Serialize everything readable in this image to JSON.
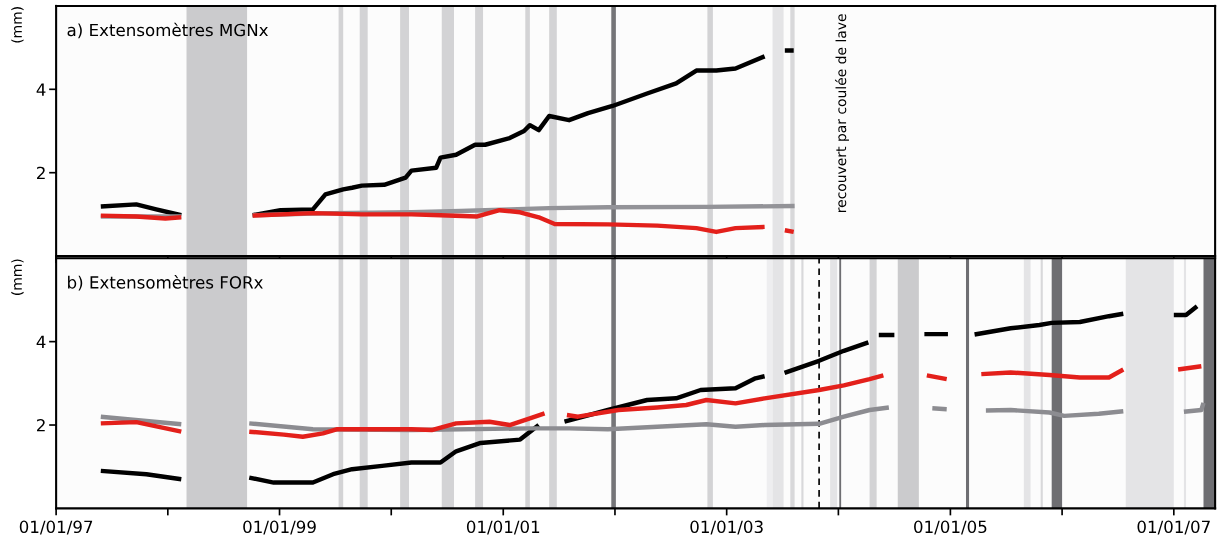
{
  "chart_data": [
    {
      "type": "line",
      "title": "a) Extensomètres MGNx",
      "ylabel": "(mm)",
      "xlim": [
        "1997-01-01",
        "2007-05-16"
      ],
      "ylim": [
        0,
        6
      ],
      "tick_labels": "y",
      "grid": false,
      "line_style": "solid",
      "marker": "none",
      "xticks": [
        "1997-01-01",
        "1998-01-01",
        "1999-01-01",
        "2000-01-01",
        "2001-01-01",
        "2002-01-01",
        "2003-01-01",
        "2004-01-01",
        "2005-01-01",
        "2006-01-01",
        "2007-01-01"
      ],
      "yticks": [
        2,
        4
      ],
      "annotations": [
        "recouvert par coulée de lave"
      ],
      "bands": [
        {
          "axis": "x",
          "from": "1998-03-03",
          "to": "1998-09-17",
          "color": "#cbcbcd"
        },
        {
          "axis": "x",
          "from": "1999-07-13",
          "to": "1999-07-28",
          "color": "#d3d3d5"
        },
        {
          "axis": "x",
          "from": "1999-09-20",
          "to": "1999-10-16",
          "color": "#d3d3d5"
        },
        {
          "axis": "x",
          "from": "2000-01-30",
          "to": "2000-02-28",
          "color": "#d3d3d5"
        },
        {
          "axis": "x",
          "from": "2000-06-14",
          "to": "2000-07-24",
          "color": "#d3d3d5"
        },
        {
          "axis": "x",
          "from": "2000-10-01",
          "to": "2000-10-27",
          "color": "#d3d3d5"
        },
        {
          "axis": "x",
          "from": "2001-03-14",
          "to": "2001-03-29",
          "color": "#d3d3d5"
        },
        {
          "axis": "x",
          "from": "2001-05-31",
          "to": "2001-06-25",
          "color": "#d3d3d5"
        },
        {
          "axis": "x",
          "from": "2001-12-20",
          "to": "2002-01-04",
          "color": "#757578"
        },
        {
          "axis": "x",
          "from": "2002-10-30",
          "to": "2002-11-17",
          "color": "#d3d3d5"
        },
        {
          "axis": "x",
          "from": "2003-05-31",
          "to": "2003-07-06",
          "color": "#e4e4e6"
        },
        {
          "axis": "x",
          "from": "2003-07-28",
          "to": "2003-08-11",
          "color": "#d8d8da"
        }
      ],
      "series": [
        {
          "color": "#000000",
          "x": [
            "1997-05-27",
            "1997-09-20",
            "1997-11-24",
            "1998-02-14",
            "1998-05-27",
            "1998-10-05",
            "1999-01-04",
            "1999-04-20",
            "1999-05-31",
            "1999-07-28",
            "1999-08-26",
            "1999-09-27",
            "1999-12-09",
            "2000-02-17",
            "2000-03-07",
            "2000-05-27",
            "2000-06-10",
            "2000-07-31",
            "2000-10-01",
            "2000-11-03",
            "2001-01-22",
            "2001-03-10",
            "2001-03-29",
            "2001-04-27",
            "2001-05-31",
            "2001-08-04",
            "2001-10-05",
            "2001-12-24",
            "2002-04-16",
            "2002-07-20",
            "2002-09-24",
            "2002-11-28",
            "2003-01-30",
            "2003-05-05",
            "2003-06-14",
            "2003-07-10",
            "2003-08-08"
          ],
          "values": [
            1.19,
            1.24,
            1.12,
            0.98,
            null,
            0.98,
            1.1,
            1.12,
            1.48,
            1.6,
            1.64,
            1.69,
            1.71,
            1.88,
            2.05,
            2.12,
            2.36,
            2.43,
            2.67,
            2.67,
            2.83,
            3.0,
            3.14,
            3.02,
            3.36,
            3.26,
            3.43,
            3.6,
            3.9,
            4.14,
            4.45,
            4.45,
            4.5,
            4.79,
            null,
            4.93,
            4.93
          ]
        },
        {
          "color": "#939398",
          "x": [
            "1997-05-27",
            "1997-09-20",
            "1998-02-14",
            "1998-05-27",
            "1998-10-05",
            "1999-04-20",
            "2000-03-07",
            "2000-08-15",
            "2001-01-22",
            "2001-05-31",
            "2001-12-09",
            "2002-10-27",
            "2003-08-11"
          ],
          "values": [
            0.95,
            0.95,
            0.95,
            null,
            0.98,
            1.02,
            1.05,
            1.08,
            1.12,
            1.15,
            1.17,
            1.18,
            1.2
          ]
        },
        {
          "color": "#e3201b",
          "x": [
            "1997-05-27",
            "1997-09-20",
            "1997-12-24",
            "1998-02-14",
            "1998-05-27",
            "1998-10-05",
            "1999-04-20",
            "1999-09-27",
            "2000-03-07",
            "2000-06-10",
            "2000-10-08",
            "2000-12-20",
            "2001-02-25",
            "2001-04-27",
            "2001-06-18",
            "2001-12-09",
            "2002-05-19",
            "2002-09-24",
            "2002-11-28",
            "2003-01-30",
            "2003-05-05",
            "2003-06-14",
            "2003-07-10",
            "2003-08-08"
          ],
          "values": [
            0.97,
            0.95,
            0.9,
            0.93,
            null,
            0.97,
            1.03,
            1.0,
            1.0,
            0.98,
            0.95,
            1.1,
            1.05,
            0.93,
            0.77,
            0.76,
            0.73,
            0.67,
            0.58,
            0.67,
            0.7,
            null,
            0.62,
            0.58
          ]
        }
      ]
    },
    {
      "type": "line",
      "title": "b) Extensomètres FORx",
      "ylabel": "(mm)",
      "xlim": [
        "1997-01-01",
        "2007-05-16"
      ],
      "ylim": [
        0,
        6
      ],
      "grid": false,
      "line_style": "solid",
      "marker": "none",
      "xticks": [
        {
          "value": "1997-01-01",
          "label": "01/01/97"
        },
        {
          "value": "1998-01-01",
          "label": null
        },
        {
          "value": "1999-01-01",
          "label": "01/01/99"
        },
        {
          "value": "2000-01-01",
          "label": null
        },
        {
          "value": "2001-01-01",
          "label": "01/01/01"
        },
        {
          "value": "2002-01-01",
          "label": null
        },
        {
          "value": "2003-01-01",
          "label": "01/01/03"
        },
        {
          "value": "2004-01-01",
          "label": null
        },
        {
          "value": "2005-01-01",
          "label": "01/01/05"
        },
        {
          "value": "2006-01-01",
          "label": null
        },
        {
          "value": "2007-01-01",
          "label": "01/01/07"
        }
      ],
      "yticks": [
        2,
        4
      ],
      "ref_lines": [
        {
          "axis": "x",
          "value": "2003-10-30",
          "color": "#000000",
          "line_style": "dashed"
        }
      ],
      "bands": [
        {
          "axis": "x",
          "from": "1998-03-03",
          "to": "1998-09-17",
          "color": "#cbcbcd"
        },
        {
          "axis": "x",
          "from": "1999-07-13",
          "to": "1999-07-28",
          "color": "#d3d3d5"
        },
        {
          "axis": "x",
          "from": "1999-09-20",
          "to": "1999-10-16",
          "color": "#d3d3d5"
        },
        {
          "axis": "x",
          "from": "2000-01-30",
          "to": "2000-02-28",
          "color": "#d3d3d5"
        },
        {
          "axis": "x",
          "from": "2000-06-14",
          "to": "2000-07-24",
          "color": "#d3d3d5"
        },
        {
          "axis": "x",
          "from": "2000-10-01",
          "to": "2000-10-27",
          "color": "#d3d3d5"
        },
        {
          "axis": "x",
          "from": "2001-03-14",
          "to": "2001-03-29",
          "color": "#d3d3d5"
        },
        {
          "axis": "x",
          "from": "2001-05-31",
          "to": "2001-06-25",
          "color": "#d3d3d5"
        },
        {
          "axis": "x",
          "from": "2001-12-20",
          "to": "2002-01-04",
          "color": "#757578"
        },
        {
          "axis": "x",
          "from": "2002-10-30",
          "to": "2002-11-17",
          "color": "#d3d3d5"
        },
        {
          "axis": "x",
          "from": "2003-05-12",
          "to": "2003-05-31",
          "color": "#eeeef0"
        },
        {
          "axis": "x",
          "from": "2003-05-31",
          "to": "2003-07-06",
          "color": "#e4e4e6"
        },
        {
          "axis": "x",
          "from": "2003-07-28",
          "to": "2003-08-11",
          "color": "#d8d8da"
        },
        {
          "axis": "x",
          "from": "2003-09-02",
          "to": "2003-09-09",
          "color": "#d8d8da"
        },
        {
          "axis": "x",
          "from": "2003-12-05",
          "to": "2003-12-28",
          "color": "#e4e4e6"
        },
        {
          "axis": "x",
          "from": "2004-01-04",
          "to": "2004-01-10",
          "color": "#6e6e72"
        },
        {
          "axis": "x",
          "from": "2004-04-12",
          "to": "2004-05-05",
          "color": "#d3d3d5"
        },
        {
          "axis": "x",
          "from": "2004-07-13",
          "to": "2004-09-20",
          "color": "#cbcbcd"
        },
        {
          "axis": "x",
          "from": "2005-02-21",
          "to": "2005-03-03",
          "color": "#6e6e72"
        },
        {
          "axis": "x",
          "from": "2005-08-29",
          "to": "2005-09-20",
          "color": "#e4e4e6"
        },
        {
          "axis": "x",
          "from": "2005-10-23",
          "to": "2005-10-30",
          "color": "#d8d8da"
        },
        {
          "axis": "x",
          "from": "2005-11-28",
          "to": "2006-01-01",
          "color": "#6e6e72"
        },
        {
          "axis": "x",
          "from": "2006-07-28",
          "to": "2007-01-01",
          "color": "#e4e4e6"
        },
        {
          "axis": "x",
          "from": "2007-02-03",
          "to": "2007-02-10",
          "color": "#e4e4e6"
        },
        {
          "axis": "x",
          "from": "2007-04-08",
          "to": "2007-05-16",
          "color": "#6e6e72"
        }
      ],
      "series": [
        {
          "color": "#000000",
          "x": [
            "1997-05-27",
            "1997-10-23",
            "1998-02-14",
            "1998-05-27",
            "1998-09-24",
            "1998-12-13",
            "1999-04-20",
            "1999-06-25",
            "1999-08-26",
            "1999-12-02",
            "2000-03-07",
            "2000-06-10",
            "2000-07-31",
            "2000-10-19",
            "2001-02-25",
            "2001-04-27",
            "2001-06-14",
            "2001-07-20",
            "2001-12-09",
            "2002-04-16",
            "2002-07-20",
            "2002-10-08",
            "2003-01-30",
            "2003-04-05",
            "2003-05-05",
            "2003-06-07",
            "2003-07-09",
            "2003-10-30",
            "2004-01-19",
            "2004-04-08",
            "2004-04-23",
            "2004-05-12",
            "2004-07-02",
            "2004-08-19",
            "2004-10-08",
            "2004-12-24",
            "2005-02-06",
            "2005-03-21",
            "2005-07-17",
            "2005-10-19",
            "2005-11-28",
            "2006-02-28",
            "2006-06-03",
            "2006-07-20",
            "2006-10-19",
            "2007-01-01",
            "2007-02-10",
            "2007-03-18"
          ],
          "values": [
            0.9,
            0.82,
            0.7,
            null,
            0.74,
            0.62,
            0.62,
            0.82,
            0.94,
            1.02,
            1.1,
            1.1,
            1.37,
            1.57,
            1.65,
            2.0,
            null,
            2.08,
            2.36,
            2.6,
            2.64,
            2.84,
            2.88,
            3.12,
            3.17,
            null,
            3.25,
            3.54,
            3.78,
            3.98,
            null,
            4.16,
            4.16,
            null,
            4.18,
            4.18,
            null,
            4.17,
            4.32,
            4.4,
            4.45,
            4.47,
            4.61,
            4.67,
            null,
            4.64,
            4.64,
            4.85
          ]
        },
        {
          "color": "#8c8c91",
          "x": [
            "1997-05-27",
            "1998-02-14",
            "1998-05-27",
            "1998-09-24",
            "1999-04-20",
            "2000-03-07",
            "2001-03-29",
            "2001-08-04",
            "2001-12-09",
            "2002-10-27",
            "2003-01-30",
            "2003-05-05",
            "2003-10-30",
            "2004-01-19",
            "2004-04-12",
            "2004-06-14",
            "2004-08-08",
            "2004-11-03",
            "2004-12-20",
            "2005-02-06",
            "2005-04-27",
            "2005-07-17",
            "2005-11-21",
            "2006-01-08",
            "2006-05-01",
            "2006-07-20",
            "2006-10-19",
            "2007-02-03",
            "2007-04-01",
            "2007-04-08"
          ],
          "values": [
            2.2,
            2.02,
            null,
            2.04,
            1.9,
            1.88,
            1.92,
            1.92,
            1.9,
            2.02,
            1.96,
            2.0,
            2.03,
            2.2,
            2.36,
            2.42,
            null,
            2.4,
            2.38,
            null,
            2.35,
            2.36,
            2.3,
            2.22,
            2.27,
            2.33,
            null,
            2.32,
            2.36,
            2.53
          ]
        },
        {
          "color": "#e3201b",
          "x": [
            "1997-05-27",
            "1997-09-20",
            "1998-02-14",
            "1998-05-27",
            "1998-09-24",
            "1999-01-15",
            "1999-03-18",
            "1999-05-23",
            "1999-07-09",
            "2000-03-07",
            "2000-05-12",
            "2000-07-31",
            "2000-11-17",
            "2001-01-22",
            "2001-03-29",
            "2001-05-16",
            "2001-06-18",
            "2001-07-28",
            "2001-09-02",
            "2002-01-12",
            "2002-05-19",
            "2002-08-22",
            "2002-10-27",
            "2003-01-30",
            "2003-05-05",
            "2003-10-30",
            "2004-01-19",
            "2004-04-12",
            "2004-05-27",
            "2004-08-08",
            "2004-10-16",
            "2004-12-20",
            "2005-02-06",
            "2005-04-12",
            "2005-07-17",
            "2005-11-21",
            "2006-02-28",
            "2006-06-03",
            "2006-07-20",
            "2006-10-19",
            "2007-01-15",
            "2007-04-01"
          ],
          "values": [
            2.04,
            2.07,
            1.84,
            null,
            1.84,
            1.77,
            1.72,
            1.8,
            1.9,
            1.9,
            1.88,
            2.04,
            2.08,
            2.0,
            2.16,
            2.28,
            null,
            2.24,
            2.2,
            2.36,
            2.42,
            2.48,
            2.6,
            2.52,
            2.64,
            2.84,
            2.95,
            3.1,
            3.19,
            null,
            3.19,
            3.1,
            null,
            3.22,
            3.26,
            3.2,
            3.14,
            3.14,
            3.33,
            null,
            3.33,
            3.41
          ]
        }
      ]
    }
  ]
}
